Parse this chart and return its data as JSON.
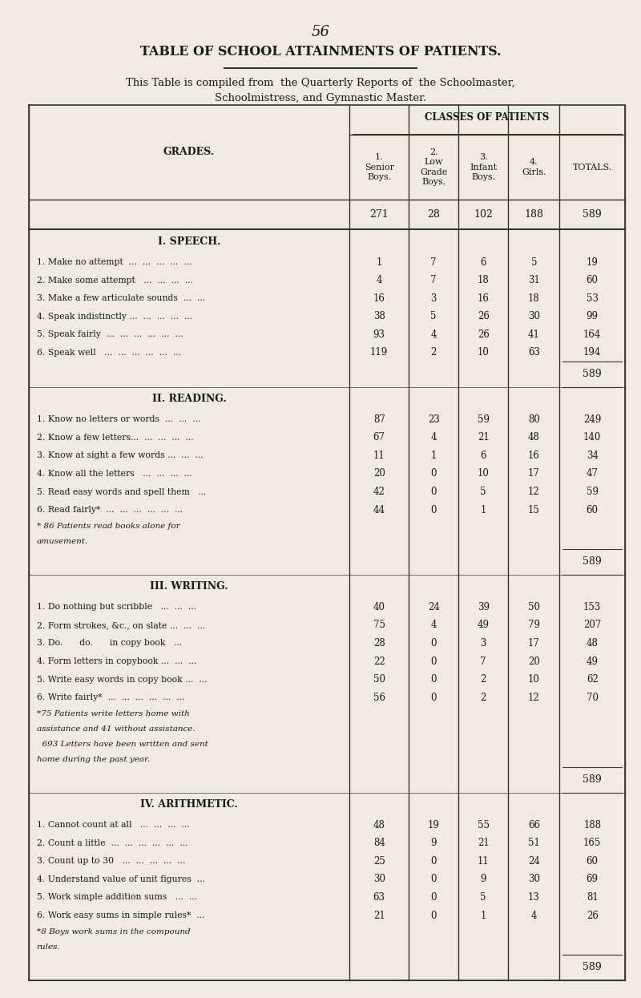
{
  "page_number": "56",
  "title": "TABLE OF SCHOOL ATTAINMENTS OF PATIENTS.",
  "subtitle1": "This Table is compiled from  the Quarterly Reports of  the Schoolmaster,",
  "subtitle2": "Schoolmistress, and Gymnastic Master.",
  "col_header_main": "CLASSES OF PATIENTS",
  "col_headers": [
    "1.\nSenior\nBoys.",
    "2.\nLow\nGrade\nBoys.",
    "3.\nInfant\nBoys.",
    "4.\nGirls.",
    "TOTALS."
  ],
  "col_totals_row": [
    "271",
    "28",
    "102",
    "188",
    "589"
  ],
  "grades_label": "GRADES.",
  "sections": [
    {
      "title": "I. SPEECH.",
      "rows": [
        {
          "label": "1. Make no attempt  ...  ...  ...  ...  ...",
          "data": [
            "1",
            "7",
            "6",
            "5",
            "19"
          ]
        },
        {
          "label": "2. Make some attempt   ...  ...  ...  ...",
          "data": [
            "4",
            "7",
            "18",
            "31",
            "60"
          ]
        },
        {
          "label": "3. Make a few articulate sounds  ...  ...",
          "data": [
            "16",
            "3",
            "16",
            "18",
            "53"
          ]
        },
        {
          "label": "4. Speak indistinctly ...  ...  ...  ...  ...",
          "data": [
            "38",
            "5",
            "26",
            "30",
            "99"
          ]
        },
        {
          "label": "5. Speak fairly  ...  ...  ...  ...  ...  ...",
          "data": [
            "93",
            "4",
            "26",
            "41",
            "164"
          ]
        },
        {
          "label": "6. Speak well   ...  ...  ...  ...  ...  ...",
          "data": [
            "119",
            "2",
            "10",
            "63",
            "194"
          ]
        }
      ],
      "footnote": "",
      "subtotal": "589"
    },
    {
      "title": "II. READING.",
      "rows": [
        {
          "label": "1. Know no letters or words  ...  ...  ...",
          "data": [
            "87",
            "23",
            "59",
            "80",
            "249"
          ]
        },
        {
          "label": "2. Know a few letters...  ...  ...  ...  ...",
          "data": [
            "67",
            "4",
            "21",
            "48",
            "140"
          ]
        },
        {
          "label": "3. Know at sight a few words ...  ...  ...",
          "data": [
            "11",
            "1",
            "6",
            "16",
            "34"
          ]
        },
        {
          "label": "4. Know all the letters   ...  ...  ...  ...",
          "data": [
            "20",
            "0",
            "10",
            "17",
            "47"
          ]
        },
        {
          "label": "5. Read easy words and spell them   ...",
          "data": [
            "42",
            "0",
            "5",
            "12",
            "59"
          ]
        },
        {
          "label": "6. Read fairly*  ...  ...  ...  ...  ...  ...",
          "data": [
            "44",
            "0",
            "1",
            "15",
            "60"
          ]
        }
      ],
      "footnote": "* 86 Patients read books alone for\namusement.",
      "subtotal": "589"
    },
    {
      "title": "III. WRITING.",
      "rows": [
        {
          "label": "1. Do nothing but scribble   ...  ...  ...",
          "data": [
            "40",
            "24",
            "39",
            "50",
            "153"
          ]
        },
        {
          "label": "2. Form strokes, &c., on slate ...  ...  ...",
          "data": [
            "75",
            "4",
            "49",
            "79",
            "207"
          ]
        },
        {
          "label": "3. Do.      do.      in copy book   ...",
          "data": [
            "28",
            "0",
            "3",
            "17",
            "48"
          ]
        },
        {
          "label": "4. Form letters in copybook ...  ...  ...",
          "data": [
            "22",
            "0",
            "7",
            "20",
            "49"
          ]
        },
        {
          "label": "5. Write easy words in copy book ...  ...",
          "data": [
            "50",
            "0",
            "2",
            "10",
            "62"
          ]
        },
        {
          "label": "6. Write fairly*  ...  ...  ...  ...  ...  ...",
          "data": [
            "56",
            "0",
            "2",
            "12",
            "70"
          ]
        }
      ],
      "footnote": "*75 Patients write letters home with\nassistance and 41 without assistance.\n  693 Letters have been written and sent\nhome during the past year.",
      "subtotal": "589"
    },
    {
      "title": "IV. ARITHMETIC.",
      "rows": [
        {
          "label": "1. Cannot count at all   ...  ...  ...  ...",
          "data": [
            "48",
            "19",
            "55",
            "66",
            "188"
          ]
        },
        {
          "label": "2. Count a little  ...  ...  ...  ...  ...  ...",
          "data": [
            "84",
            "9",
            "21",
            "51",
            "165"
          ]
        },
        {
          "label": "3. Count up to 30   ...  ...  ...  ...  ...",
          "data": [
            "25",
            "0",
            "11",
            "24",
            "60"
          ]
        },
        {
          "label": "4. Understand value of unit figures  ...",
          "data": [
            "30",
            "0",
            "9",
            "30",
            "69"
          ]
        },
        {
          "label": "5. Work simple addition sums   ...  ...",
          "data": [
            "63",
            "0",
            "5",
            "13",
            "81"
          ]
        },
        {
          "label": "6. Work easy sums in simple rules*  ...",
          "data": [
            "21",
            "0",
            "1",
            "4",
            "26"
          ]
        }
      ],
      "footnote": "*8 Boys work sums in the compound\nrules.",
      "subtotal": "589"
    }
  ],
  "bg_color": "#f0ebe0",
  "text_color": "#1a1a1a",
  "line_color": "#333333"
}
